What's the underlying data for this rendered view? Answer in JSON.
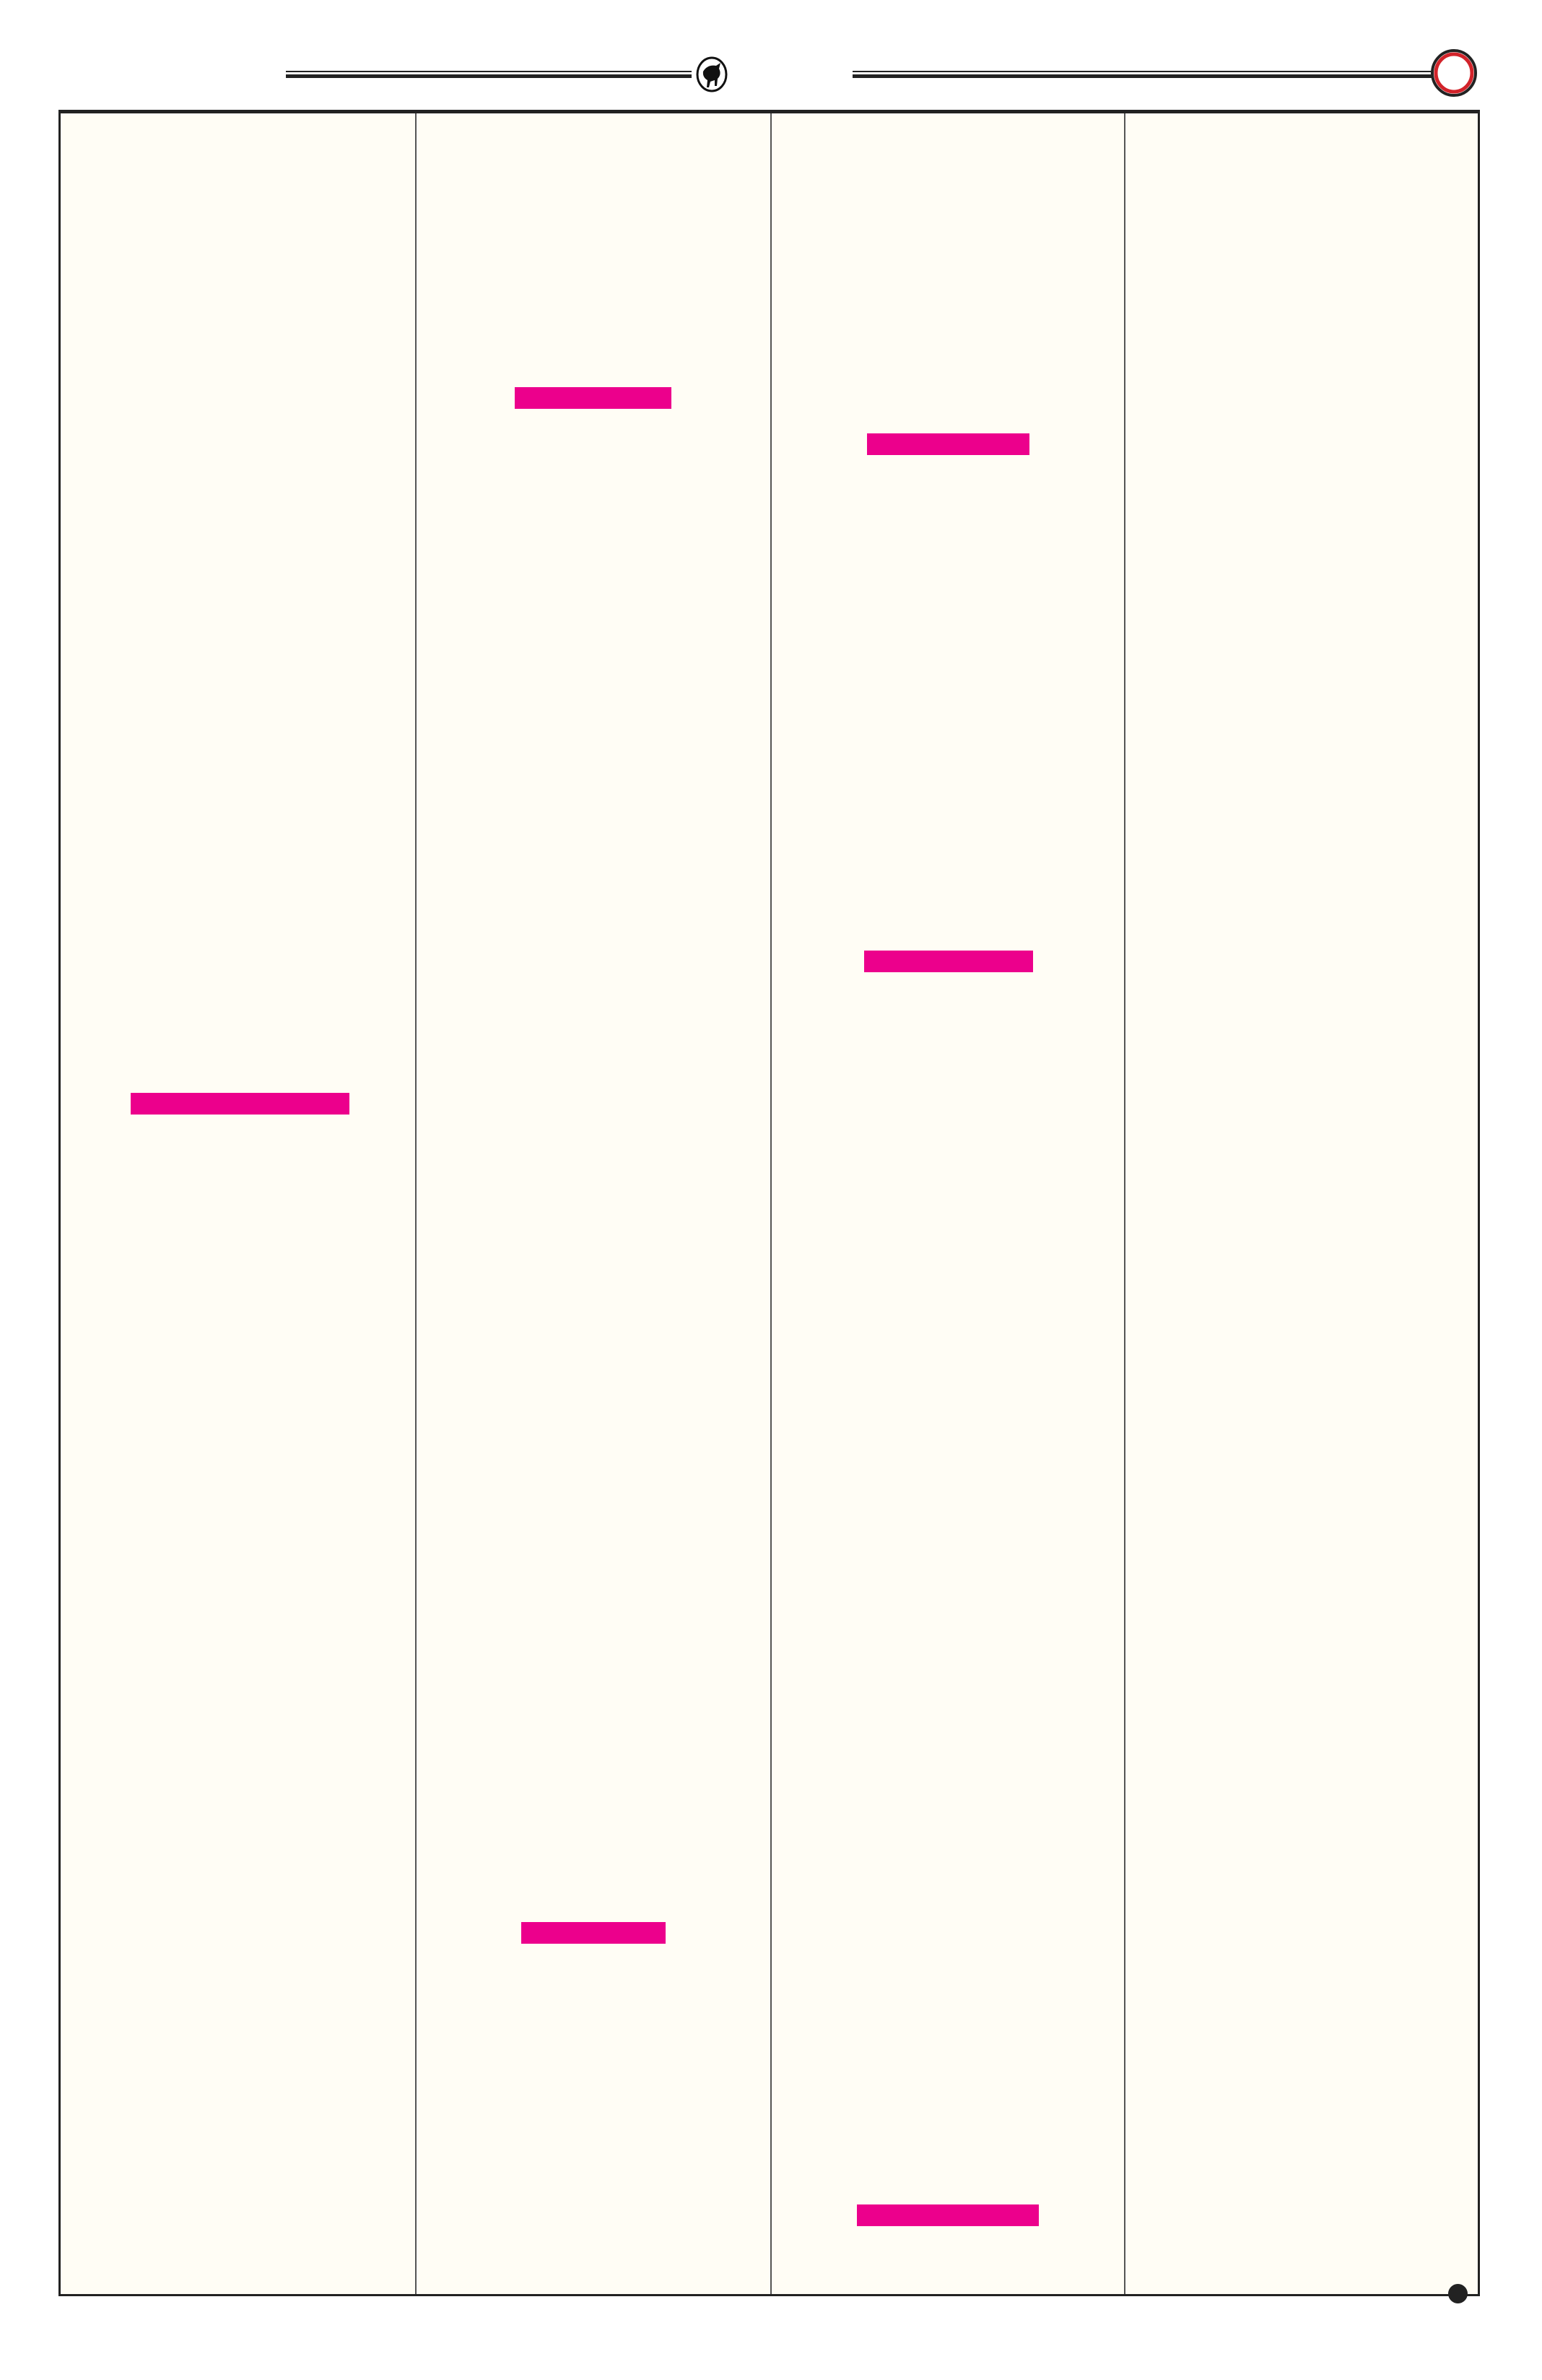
{
  "colors": {
    "page_background": "#fffdf5",
    "highlight_bar": "#ec008c",
    "rule": "#222222",
    "ring_accent": "#d2232a"
  },
  "header": {
    "emblem_icon": "bull-emblem-icon",
    "end_ornament_icon": "red-ring-icon"
  },
  "columns": [
    {
      "highlight_bars": 1
    },
    {
      "highlight_bars": 2
    },
    {
      "highlight_bars": 3
    },
    {
      "highlight_bars": 0
    }
  ],
  "footer": {
    "marker_icon": "black-dot-icon"
  }
}
